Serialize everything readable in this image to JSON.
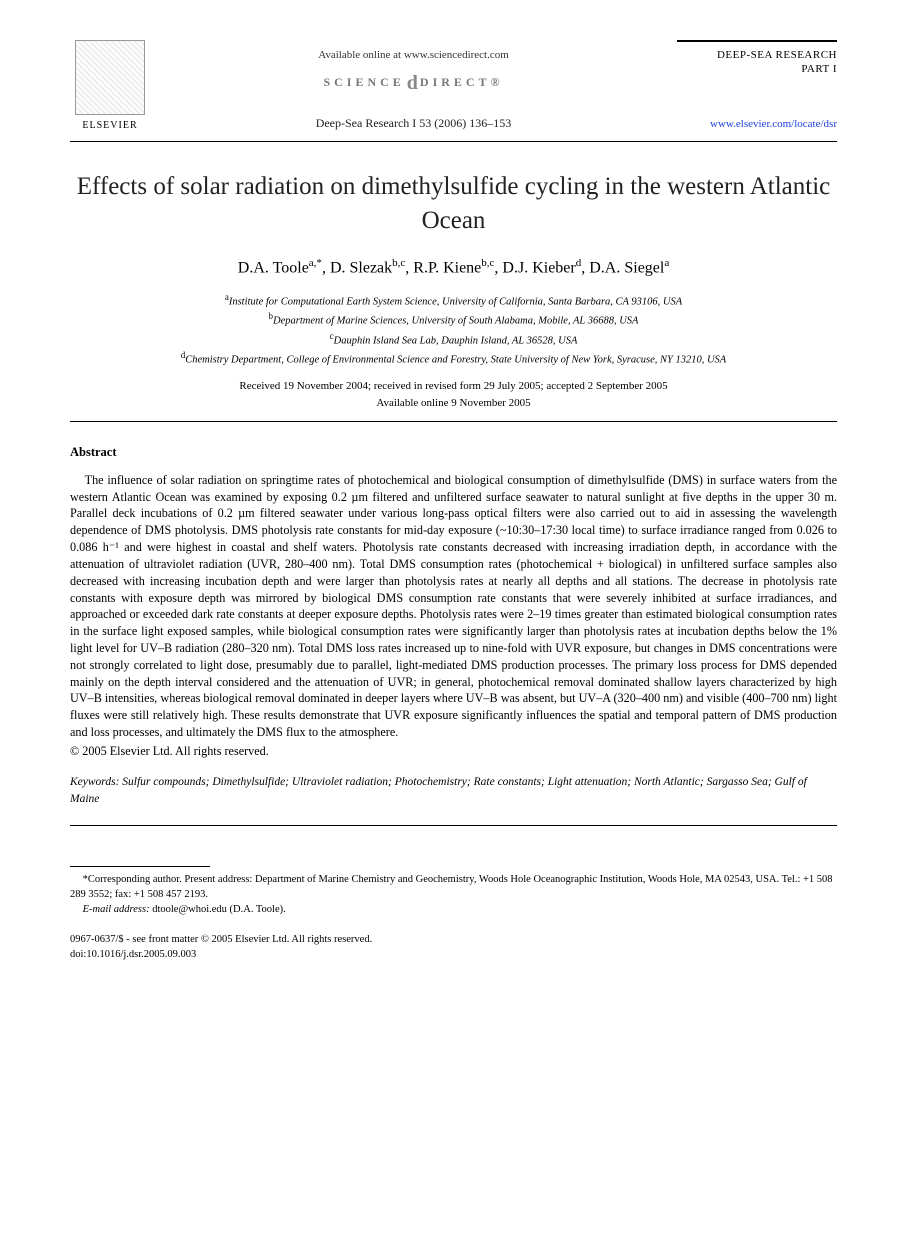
{
  "header": {
    "elsevier_label": "ELSEVIER",
    "available_online": "Available online at www.sciencedirect.com",
    "sd_left": "SCIENCE",
    "sd_right": "DIRECT®",
    "journal_ref": "Deep-Sea Research I 53 (2006) 136–153",
    "journal_name_line1": "DEEP-SEA RESEARCH",
    "journal_name_line2": "PART I",
    "journal_url": "www.elsevier.com/locate/dsr"
  },
  "title": "Effects of solar radiation on dimethylsulfide cycling in the western Atlantic Ocean",
  "authors_html": "D.A. Toole<sup>a,*</sup>, D. Slezak<sup>b,c</sup>, R.P. Kiene<sup>b,c</sup>, D.J. Kieber<sup>d</sup>, D.A. Siegel<sup>a</sup>",
  "affiliations": {
    "a": "Institute for Computational Earth System Science, University of California, Santa Barbara, CA 93106, USA",
    "b": "Department of Marine Sciences, University of South Alabama, Mobile, AL 36688, USA",
    "c": "Dauphin Island Sea Lab, Dauphin Island, AL 36528, USA",
    "d": "Chemistry Department, College of Environmental Science and Forestry, State University of New York, Syracuse, NY 13210, USA"
  },
  "dates": {
    "line1": "Received 19 November 2004; received in revised form 29 July 2005; accepted 2 September 2005",
    "line2": "Available online 9 November 2005"
  },
  "abstract": {
    "heading": "Abstract",
    "body": "The influence of solar radiation on springtime rates of photochemical and biological consumption of dimethylsulfide (DMS) in surface waters from the western Atlantic Ocean was examined by exposing 0.2 µm filtered and unfiltered surface seawater to natural sunlight at five depths in the upper 30 m. Parallel deck incubations of 0.2 µm filtered seawater under various long-pass optical filters were also carried out to aid in assessing the wavelength dependence of DMS photolysis. DMS photolysis rate constants for mid-day exposure (~10:30–17:30 local time) to surface irradiance ranged from 0.026 to 0.086 h⁻¹ and were highest in coastal and shelf waters. Photolysis rate constants decreased with increasing irradiation depth, in accordance with the attenuation of ultraviolet radiation (UVR, 280–400 nm). Total DMS consumption rates (photochemical + biological) in unfiltered surface samples also decreased with increasing incubation depth and were larger than photolysis rates at nearly all depths and all stations. The decrease in photolysis rate constants with exposure depth was mirrored by biological DMS consumption rate constants that were severely inhibited at surface irradiances, and approached or exceeded dark rate constants at deeper exposure depths. Photolysis rates were 2–19 times greater than estimated biological consumption rates in the surface light exposed samples, while biological consumption rates were significantly larger than photolysis rates at incubation depths below the 1% light level for UV–B radiation (280–320 nm). Total DMS loss rates increased up to nine-fold with UVR exposure, but changes in DMS concentrations were not strongly correlated to light dose, presumably due to parallel, light-mediated DMS production processes. The primary loss process for DMS depended mainly on the depth interval considered and the attenuation of UVR; in general, photochemical removal dominated shallow layers characterized by high UV–B intensities, whereas biological removal dominated in deeper layers where UV–B was absent, but UV–A (320–400 nm) and visible (400–700 nm) light fluxes were still relatively high. These results demonstrate that UVR exposure significantly influences the spatial and temporal pattern of DMS production and loss processes, and ultimately the DMS flux to the atmosphere.",
    "copyright": "© 2005 Elsevier Ltd. All rights reserved."
  },
  "keywords": {
    "label": "Keywords:",
    "list": "Sulfur compounds; Dimethylsulfide; Ultraviolet radiation; Photochemistry; Rate constants; Light attenuation; North Atlantic; Sargasso Sea; Gulf of Maine"
  },
  "footnote": {
    "corr": "*Corresponding author. Present address: Department of Marine Chemistry and Geochemistry, Woods Hole Oceanographic Institution, Woods Hole, MA 02543, USA. Tel.: +1 508 289 3552; fax: +1 508 457 2193.",
    "email_label": "E-mail address:",
    "email": "dtoole@whoi.edu (D.A. Toole)."
  },
  "footer": {
    "issn_line": "0967-0637/$ - see front matter © 2005 Elsevier Ltd. All rights reserved.",
    "doi_line": "doi:10.1016/j.dsr.2005.09.003"
  }
}
